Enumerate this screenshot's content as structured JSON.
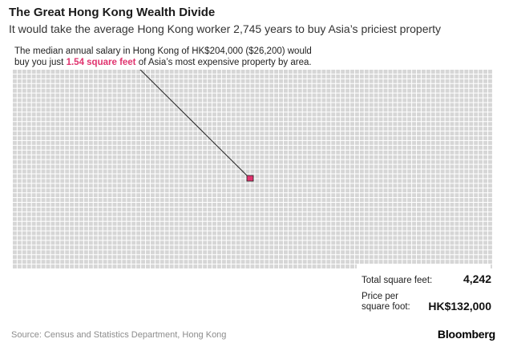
{
  "header": {
    "title": "The Great Hong Kong Wealth Divide",
    "subtitle": "It would take the average Hong Kong worker 2,745 years to buy Asia’s priciest property"
  },
  "annotation": {
    "text_before": "The median annual salary in Hong Kong of HK$204,000 ($26,200) would buy you just ",
    "highlight": "1.54 square feet",
    "text_after": " of Asia’s most expensive property by area."
  },
  "stats": {
    "total_label": "Total square feet:",
    "total_value": "4,242",
    "price_label_line1": "Price per",
    "price_label_line2": "square foot:",
    "price_value": "HK$132,000"
  },
  "footer": {
    "source": "Source: Census and Statistics Department, Hong Kong",
    "brand": "Bloomberg"
  },
  "chart_data": {
    "type": "waffle",
    "total_square_feet": 4242,
    "highlighted_square_feet": 1.54,
    "price_per_square_foot_hkd": 132000,
    "median_annual_salary_hkd": 204000,
    "median_annual_salary_usd": 26200,
    "years_to_buy": 2745
  },
  "colors": {
    "cell": "#d6d6d6",
    "highlight": "#e0336e",
    "leader_line": "#222222"
  }
}
